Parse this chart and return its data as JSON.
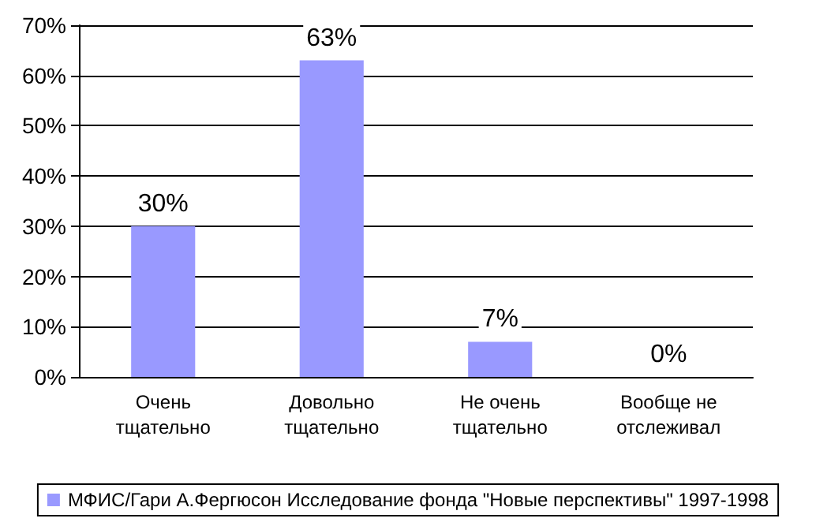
{
  "chart_data": {
    "type": "bar",
    "categories": [
      "Очень\nтщательно",
      "Довольно\nтщательно",
      "Не очень\nтщательно",
      "Вообще не\nотслеживал"
    ],
    "series": [
      {
        "name": "МФИС/Гари А.Фергюсон Исследование фонда \"Новые перспективы\" 1997-1998",
        "color": "#9999ff",
        "values": [
          30,
          63,
          7,
          0
        ],
        "value_labels": [
          "30%",
          "63%",
          "7%",
          "0%"
        ]
      }
    ],
    "ylim": [
      0,
      70
    ],
    "yticks": [
      {
        "value": 0,
        "label": "0%"
      },
      {
        "value": 10,
        "label": "10%"
      },
      {
        "value": 20,
        "label": "20%"
      },
      {
        "value": 30,
        "label": "30%"
      },
      {
        "value": 40,
        "label": "40%"
      },
      {
        "value": 50,
        "label": "50%"
      },
      {
        "value": 60,
        "label": "60%"
      },
      {
        "value": 70,
        "label": "70%"
      }
    ],
    "grid": "y",
    "legend": "bottom"
  }
}
